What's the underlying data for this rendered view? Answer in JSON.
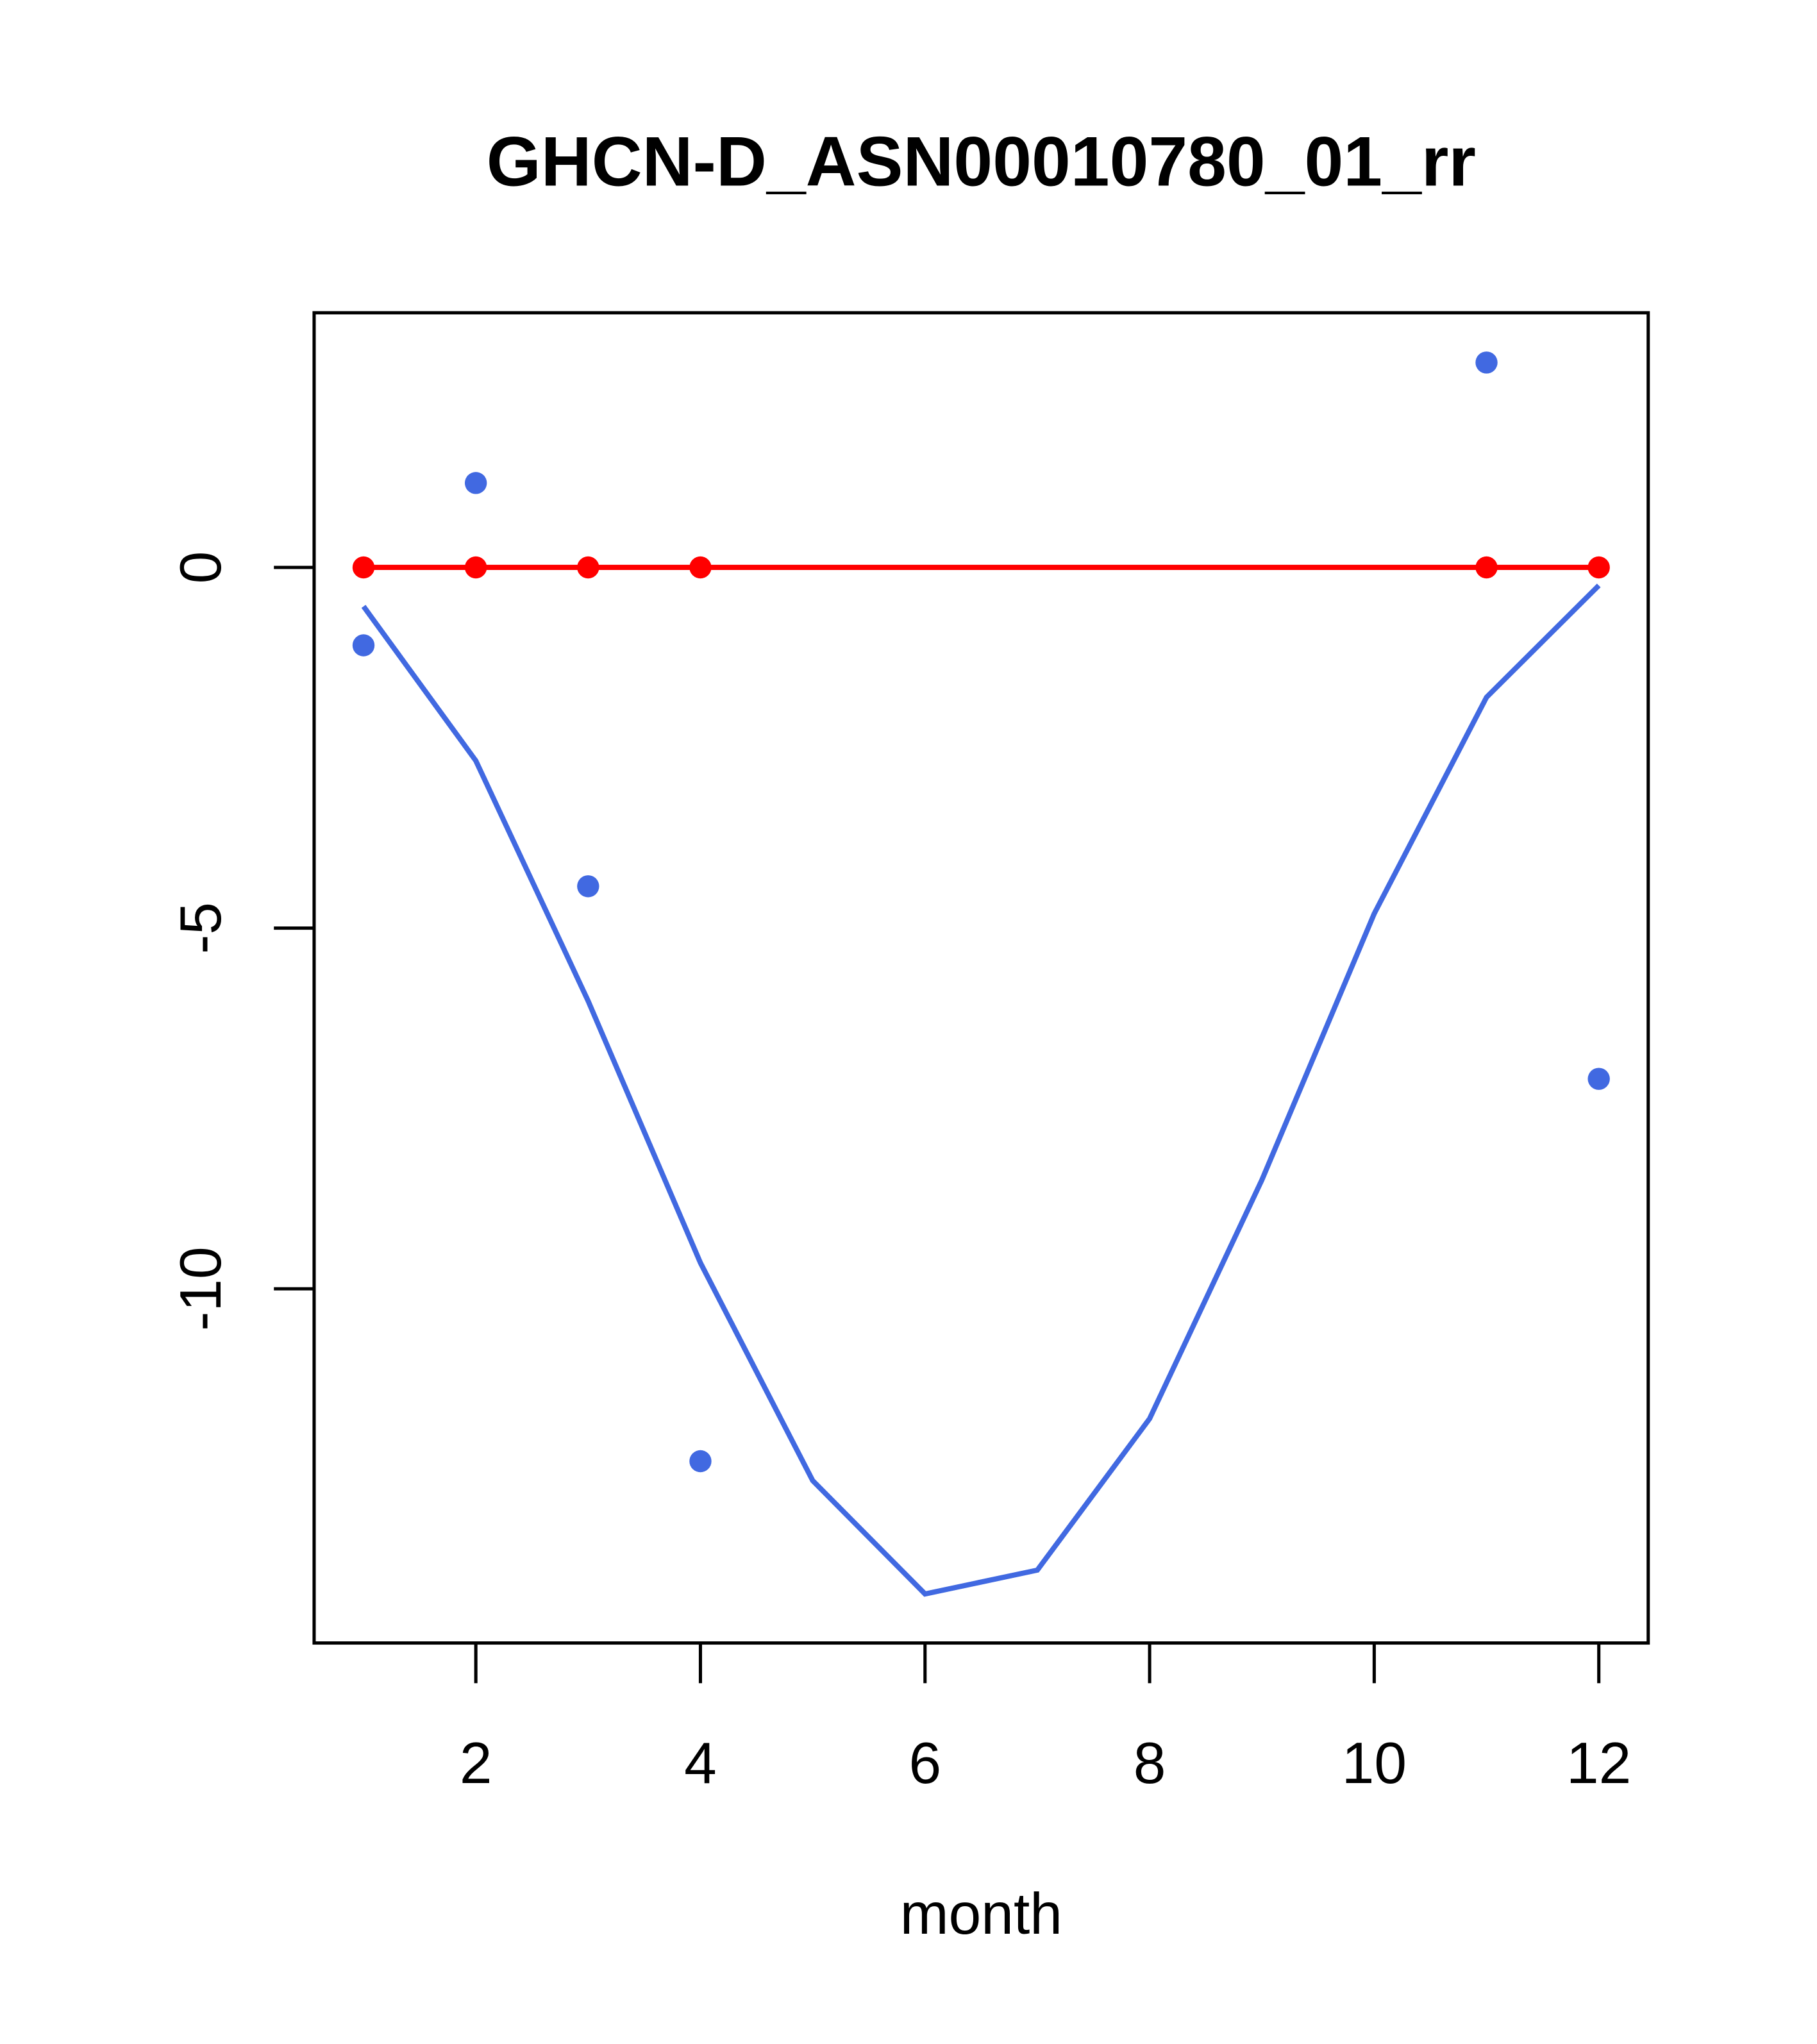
{
  "chart_data": {
    "type": "line",
    "title": "GHCN-D_ASN00010780_01_rr",
    "xlabel": "month",
    "ylabel": "",
    "xlim": [
      0.56,
      12.44
    ],
    "ylim": [
      -14.91,
      3.53
    ],
    "xticks": [
      2,
      4,
      6,
      8,
      10,
      12
    ],
    "xtick_labels": [
      "2",
      "4",
      "6",
      "8",
      "10",
      "12"
    ],
    "yticks": [
      0,
      -5,
      -10
    ],
    "ytick_labels": [
      "0",
      "-5",
      "-10"
    ],
    "grid": false,
    "series": [
      {
        "name": "points",
        "kind": "scatter",
        "color": "#4169E1",
        "x": [
          1,
          2,
          3,
          4,
          11,
          12
        ],
        "y": [
          -1.08,
          1.17,
          -4.42,
          -12.39,
          2.84,
          -7.09
        ]
      },
      {
        "name": "curve",
        "kind": "line",
        "color": "#4169E1",
        "x": [
          1,
          2,
          3,
          4,
          5,
          6,
          7,
          8,
          9,
          10,
          11,
          12
        ],
        "y": [
          -0.54,
          -2.68,
          -6.01,
          -9.64,
          -12.66,
          -14.23,
          -13.9,
          -11.8,
          -8.49,
          -4.8,
          -1.8,
          -0.25
        ]
      },
      {
        "name": "zero",
        "kind": "line+points",
        "color": "#FF0000",
        "x": [
          1,
          2,
          3,
          4,
          11,
          12
        ],
        "y": [
          0,
          0,
          0,
          0,
          0,
          0
        ]
      }
    ]
  }
}
